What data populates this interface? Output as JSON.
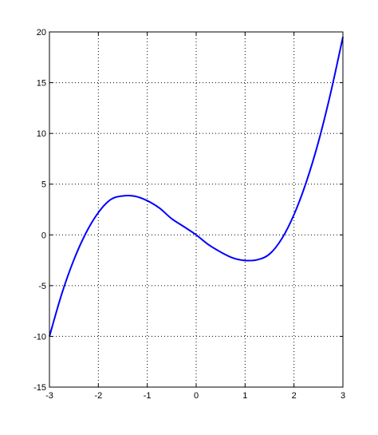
{
  "chart_data": {
    "type": "line",
    "title": "",
    "xlabel": "",
    "ylabel": "",
    "xlim": [
      -3,
      3
    ],
    "ylim": [
      -15,
      20
    ],
    "x_ticks": [
      -3,
      -2,
      -1,
      0,
      1,
      2,
      3
    ],
    "x_tick_labels": [
      "-3",
      "-2",
      "-1",
      "0",
      "1",
      "2",
      "3"
    ],
    "y_ticks": [
      -15,
      -10,
      -5,
      0,
      5,
      10,
      15,
      20
    ],
    "y_tick_labels": [
      "-15",
      "-10",
      "-5",
      "0",
      "5",
      "10",
      "15",
      "20"
    ],
    "grid": true,
    "grid_style": "dotted",
    "series": [
      {
        "color": "#0000ff",
        "x": [
          -3,
          -2.75,
          -2.5,
          -2.25,
          -2,
          -1.75,
          -1.5,
          -1.25,
          -1,
          -0.75,
          -0.5,
          -0.25,
          0,
          0.25,
          0.5,
          0.75,
          1,
          1.25,
          1.5,
          1.75,
          2,
          2.25,
          2.5,
          2.75,
          3
        ],
        "y": [
          -10,
          -5.84,
          -2.45,
          0.22,
          2.2,
          3.48,
          3.84,
          3.81,
          3.37,
          2.64,
          1.59,
          0.81,
          0,
          -0.96,
          -1.69,
          -2.27,
          -2.52,
          -2.45,
          -1.89,
          -0.38,
          2.0,
          5.19,
          9.17,
          14.0,
          19.5
        ]
      }
    ]
  }
}
